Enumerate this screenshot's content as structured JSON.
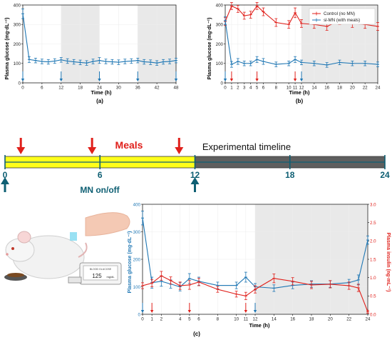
{
  "colors": {
    "blue": "#1f77b4",
    "red": "#e0201b",
    "shade": "#e9e9e9",
    "timeline_yellow": "#ffff1a",
    "timeline_gray": "#5f5f5f",
    "mn_teal": "#0e5f73",
    "axis": "#222222"
  },
  "timeline": {
    "meals_label": "Meals",
    "title": "Experimental timeline",
    "mn_label": "MN on/off",
    "ticks": [
      "0",
      "6",
      "12",
      "18",
      "24"
    ],
    "meal_hours": [
      1,
      5.5,
      11
    ],
    "mn_hours": [
      0,
      12
    ]
  },
  "illustration": {
    "monitor_text": "125",
    "monitor_unit": "mg/dL",
    "monitor_header": "BLOOD GLUCOSE"
  },
  "chart_data": [
    {
      "panel": "(a)",
      "type": "line",
      "xlabel": "Time (h)",
      "ylabel": "Plasma glucose (mg·dL⁻¹)",
      "xlim": [
        0,
        48
      ],
      "ylim": [
        0,
        400
      ],
      "xticks": [
        0,
        6,
        12,
        18,
        24,
        30,
        36,
        42,
        48
      ],
      "xtick_labels": [
        "0",
        "6",
        "12",
        "18",
        "24",
        "30",
        "36",
        "42",
        "48"
      ],
      "yticks": [
        0,
        100,
        200,
        300,
        400
      ],
      "ytick_labels": [
        "0",
        "100",
        "200",
        "300",
        "400"
      ],
      "shaded_ranges": [
        [
          12,
          24
        ],
        [
          36,
          48
        ]
      ],
      "series": [
        {
          "color": "#1f77b4",
          "x": [
            0,
            2,
            4,
            6,
            8,
            10,
            12,
            14,
            16,
            18,
            20,
            22,
            24,
            26,
            28,
            30,
            32,
            34,
            36,
            38,
            40,
            42,
            44,
            46,
            48
          ],
          "y": [
            355,
            120,
            115,
            110,
            108,
            112,
            118,
            112,
            108,
            105,
            102,
            110,
            115,
            110,
            108,
            106,
            110,
            112,
            115,
            108,
            106,
            102,
            108,
            110,
            115
          ],
          "err": [
            25,
            15,
            12,
            12,
            12,
            12,
            12,
            12,
            12,
            12,
            12,
            12,
            15,
            12,
            12,
            12,
            12,
            12,
            12,
            12,
            12,
            12,
            12,
            12,
            12
          ]
        }
      ],
      "arrows_blue": [
        0,
        12,
        24,
        36,
        48
      ]
    },
    {
      "panel": "(b)",
      "type": "line",
      "xlabel": "Time (h)",
      "ylabel": "Plasma glucose (mg·dL⁻¹)",
      "xlim": [
        0,
        24
      ],
      "ylim": [
        0,
        400
      ],
      "xticks": [
        0,
        1,
        2,
        3,
        4,
        5,
        6,
        8,
        10,
        11,
        12,
        14,
        16,
        18,
        20,
        22,
        24
      ],
      "xtick_labels": [
        "0",
        "1",
        "2",
        "3",
        "4",
        "5",
        "6",
        "8",
        "10",
        "11",
        "12",
        "14",
        "16",
        "18",
        "20",
        "22",
        "24"
      ],
      "yticks": [
        0,
        100,
        200,
        300,
        400
      ],
      "ytick_labels": [
        "0",
        "100",
        "200",
        "300",
        "400"
      ],
      "shaded_ranges": [
        [
          12,
          24
        ]
      ],
      "legend": [
        "Control (no MN)",
        "sl-MN (with meals)"
      ],
      "legend_position": "top-right",
      "series": [
        {
          "name": "Control (no MN)",
          "color": "#e0201b",
          "x": [
            0,
            1,
            2,
            3,
            4,
            5,
            6,
            8,
            10,
            11,
            12,
            14,
            16,
            18,
            20,
            22,
            24
          ],
          "y": [
            315,
            395,
            380,
            345,
            350,
            395,
            365,
            310,
            300,
            360,
            305,
            300,
            290,
            320,
            305,
            300,
            290
          ],
          "err": [
            20,
            18,
            18,
            18,
            18,
            18,
            20,
            20,
            20,
            25,
            20,
            20,
            20,
            20,
            20,
            20,
            20
          ]
        },
        {
          "name": "sl-MN (with meals)",
          "color": "#1f77b4",
          "x": [
            0,
            1,
            2,
            3,
            4,
            5,
            6,
            8,
            10,
            11,
            12,
            14,
            16,
            18,
            20,
            22,
            24
          ],
          "y": [
            320,
            95,
            110,
            100,
            100,
            120,
            110,
            95,
            100,
            120,
            105,
            100,
            92,
            105,
            100,
            100,
            95
          ],
          "err": [
            20,
            15,
            15,
            12,
            12,
            15,
            15,
            12,
            12,
            15,
            12,
            12,
            12,
            12,
            12,
            12,
            12
          ]
        }
      ],
      "arrows_red": [
        1,
        5,
        11
      ],
      "arrows_blue": [
        0,
        12
      ]
    },
    {
      "panel": "(c)",
      "type": "line",
      "xlabel": "Time (h)",
      "ylabel": "Plasma glucose (mg·dL⁻¹)",
      "ylabel_right": "Plasma insulin (ng·mL⁻¹)",
      "xlim": [
        0,
        24
      ],
      "ylim": [
        0,
        400
      ],
      "ylim_right": [
        0,
        3.0
      ],
      "xticks": [
        0,
        1,
        2,
        4,
        5,
        6,
        8,
        10,
        11,
        12,
        14,
        16,
        18,
        20,
        22,
        24
      ],
      "xtick_labels": [
        "0",
        "1",
        "2",
        "4",
        "5",
        "6",
        "8",
        "10",
        "11",
        "12",
        "14",
        "16",
        "18",
        "20",
        "22",
        "24"
      ],
      "yticks": [
        0,
        100,
        200,
        300,
        400
      ],
      "ytick_labels": [
        "0",
        "100",
        "200",
        "300",
        "400"
      ],
      "yticks_right": [
        0,
        0.5,
        1.0,
        1.5,
        2.0,
        2.5,
        3.0
      ],
      "ytick_labels_right": [
        "0.0",
        "0.5",
        "1.0",
        "1.5",
        "2.0",
        "2.5",
        "3.0"
      ],
      "shaded_ranges": [
        [
          12,
          24
        ]
      ],
      "series": [
        {
          "axis": "left",
          "color": "#1f77b4",
          "x": [
            0,
            1,
            2,
            3,
            4,
            5,
            6,
            8,
            10,
            11,
            12,
            14,
            16,
            18,
            20,
            22,
            23,
            24
          ],
          "y": [
            350,
            115,
            120,
            110,
            100,
            130,
            120,
            105,
            105,
            135,
            100,
            95,
            105,
            110,
            110,
            115,
            125,
            270
          ],
          "err": [
            25,
            20,
            18,
            15,
            15,
            18,
            15,
            12,
            12,
            18,
            12,
            12,
            12,
            12,
            12,
            12,
            18,
            15
          ]
        },
        {
          "axis": "right",
          "color": "#e0201b",
          "x": [
            0,
            1,
            2,
            3,
            4,
            5,
            6,
            8,
            10,
            11,
            12,
            14,
            16,
            18,
            20,
            22,
            23,
            24
          ],
          "y": [
            0.78,
            0.85,
            1.05,
            0.92,
            0.78,
            0.8,
            0.88,
            0.68,
            0.55,
            0.5,
            0.68,
            0.98,
            0.9,
            0.8,
            0.82,
            0.78,
            0.72,
            0.07
          ],
          "err": [
            0.08,
            0.1,
            0.12,
            0.1,
            0.1,
            0.12,
            0.1,
            0.08,
            0.08,
            0.1,
            0.1,
            0.12,
            0.1,
            0.1,
            0.1,
            0.1,
            0.1,
            0.04
          ]
        }
      ],
      "arrows_red": [
        1,
        5,
        11
      ],
      "arrows_blue": [
        0,
        12
      ]
    }
  ]
}
